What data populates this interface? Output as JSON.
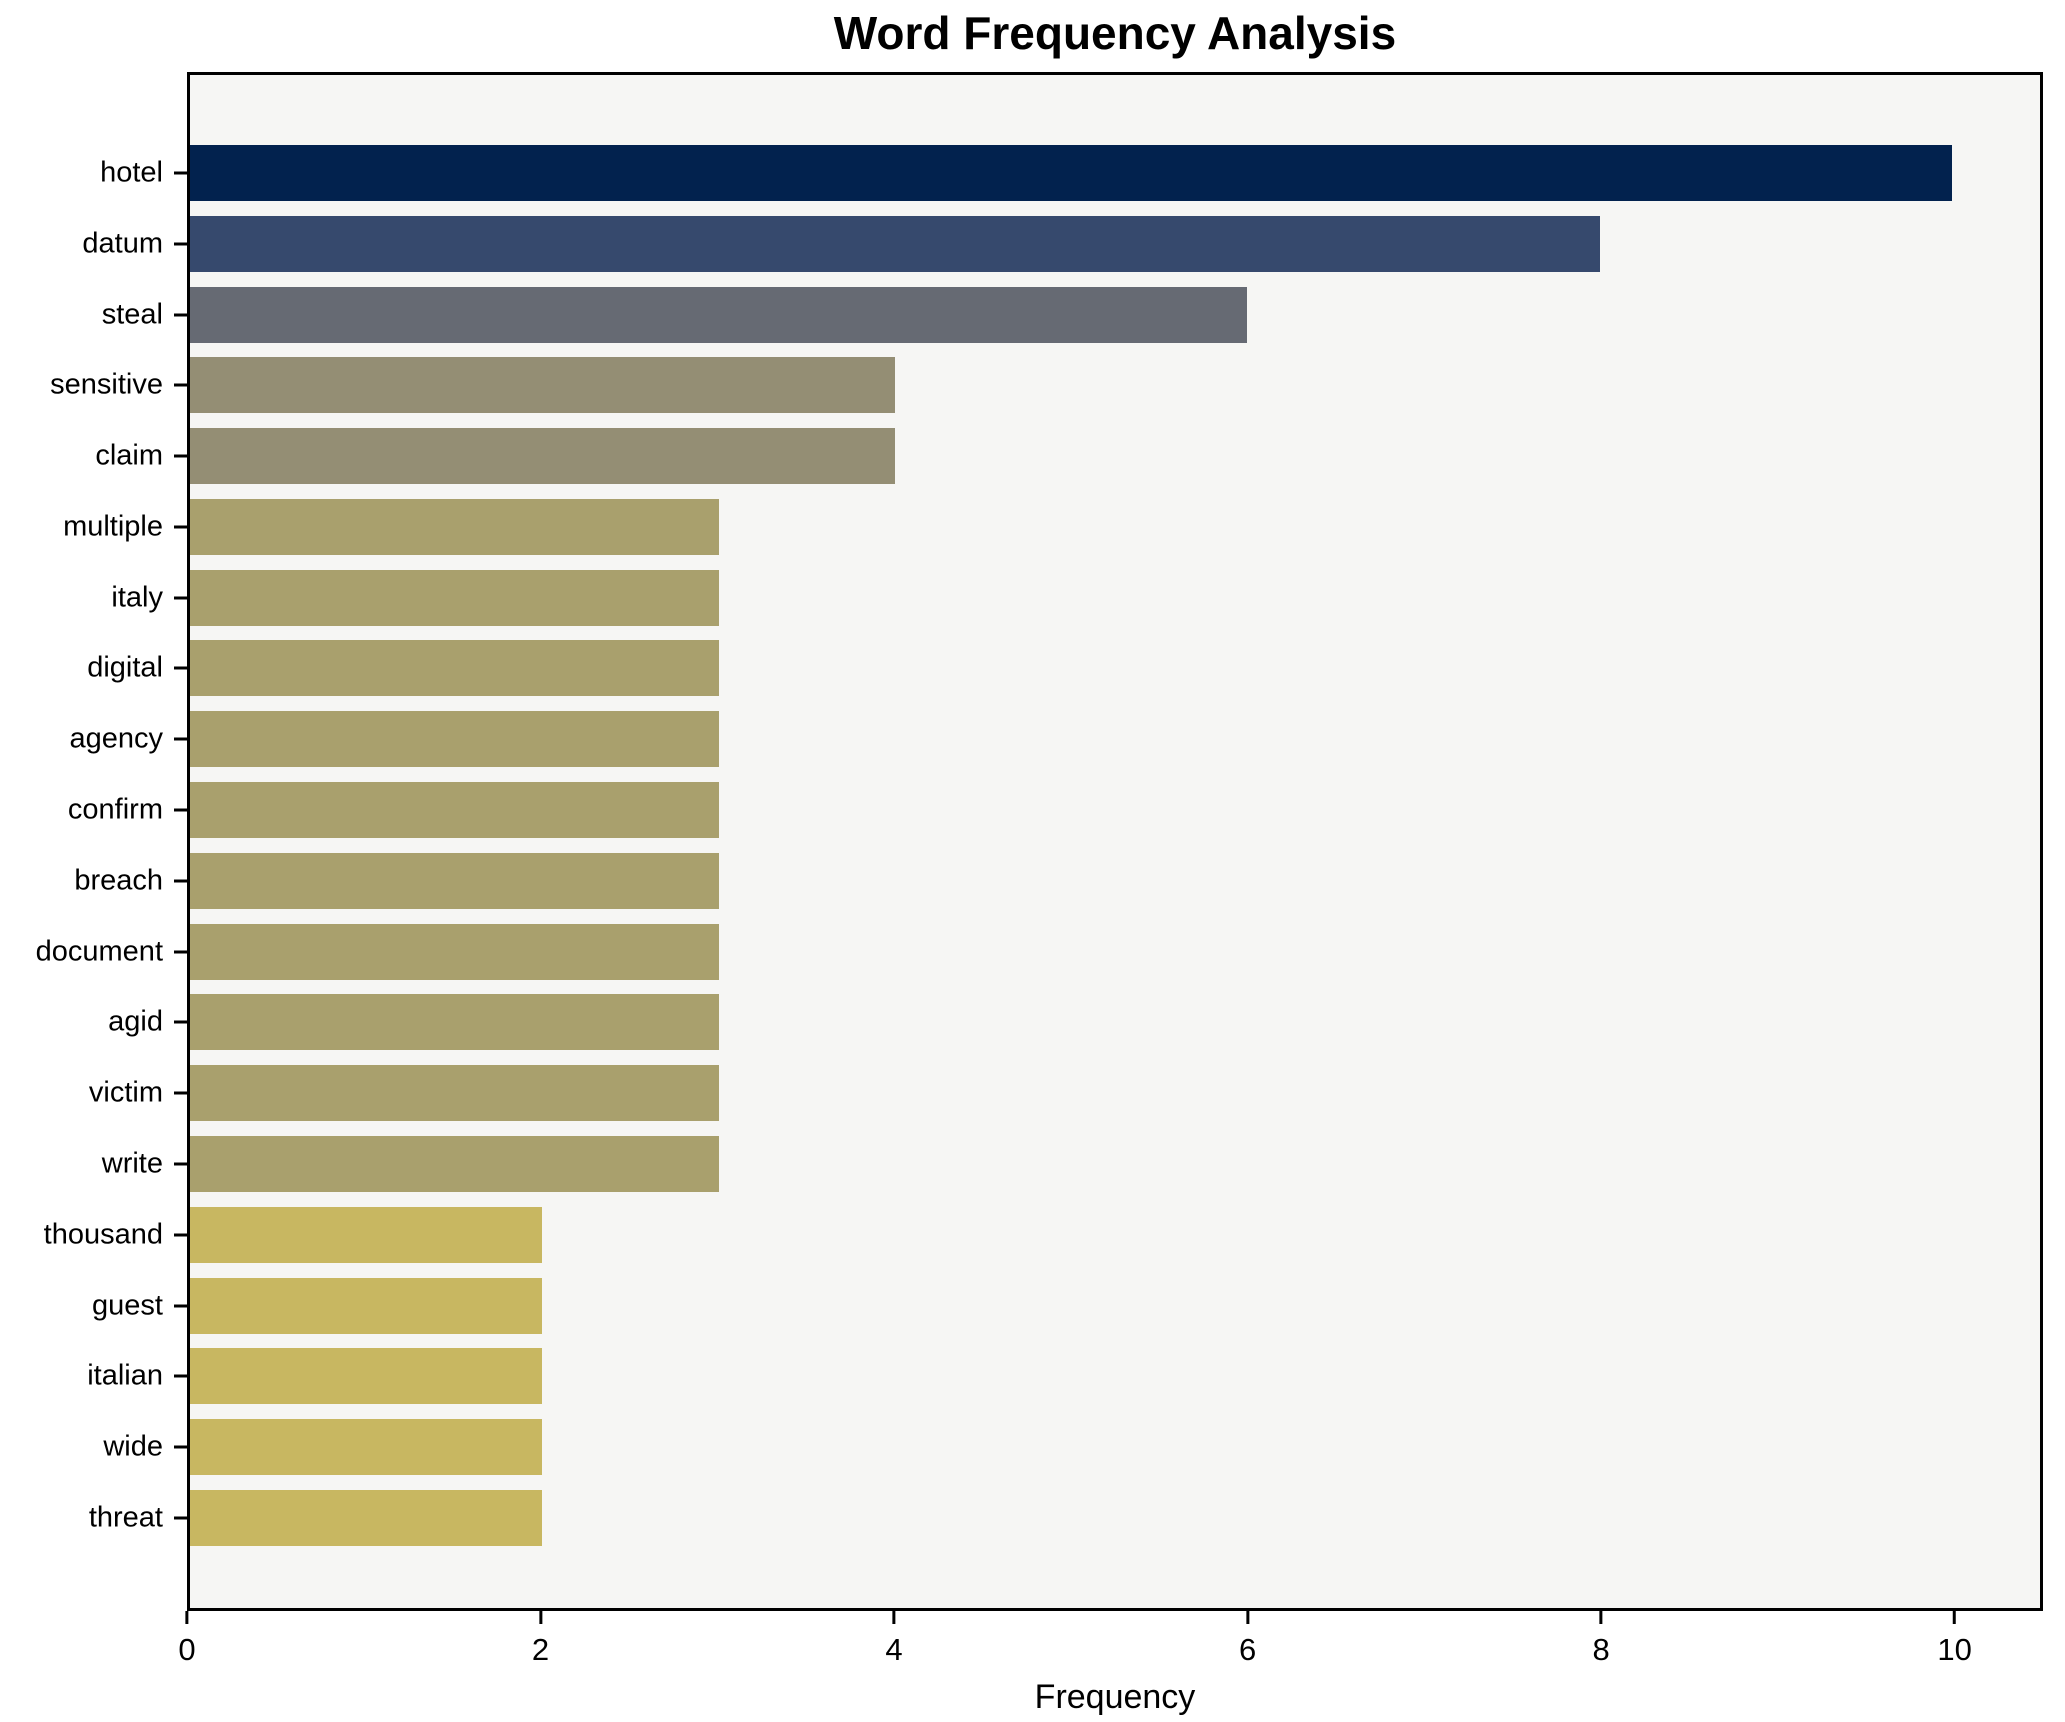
{
  "chart_data": {
    "type": "bar",
    "orientation": "horizontal",
    "title": "Word Frequency Analysis",
    "xlabel": "Frequency",
    "ylabel": "",
    "categories": [
      "hotel",
      "datum",
      "steal",
      "sensitive",
      "claim",
      "multiple",
      "italy",
      "digital",
      "agency",
      "confirm",
      "breach",
      "document",
      "agid",
      "victim",
      "write",
      "thousand",
      "guest",
      "italian",
      "wide",
      "threat"
    ],
    "values": [
      10,
      8,
      6,
      4,
      4,
      3,
      3,
      3,
      3,
      3,
      3,
      3,
      3,
      3,
      3,
      2,
      2,
      2,
      2,
      2
    ],
    "bar_colors": [
      "#02224e",
      "#36496d",
      "#666a73",
      "#948e74",
      "#948e74",
      "#a9a06d",
      "#a9a06d",
      "#a9a06d",
      "#a9a06d",
      "#a9a06d",
      "#a9a06d",
      "#a9a06d",
      "#a9a06d",
      "#a9a06d",
      "#a9a06d",
      "#c8b761",
      "#c8b761",
      "#c8b761",
      "#c8b761",
      "#c8b761"
    ],
    "xlim": [
      0,
      10.5
    ],
    "xticks": [
      0,
      2,
      4,
      6,
      8,
      10
    ],
    "xtick_labels": [
      "0",
      "2",
      "4",
      "6",
      "8",
      "10"
    ],
    "grid": "off",
    "legend": "none",
    "plot_background": "#f6f6f4",
    "spine_color": "#000000"
  }
}
